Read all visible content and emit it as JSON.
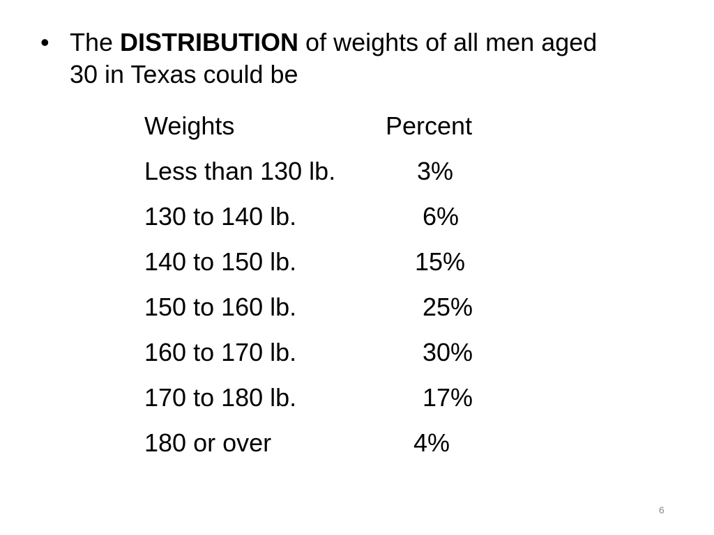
{
  "slide": {
    "bullet": {
      "glyph": "•",
      "prefix": "The ",
      "emphasis": "DISTRIBUTION",
      "suffix": " of weights of all men aged",
      "line2": "30 in Texas could be"
    },
    "table": {
      "headers": {
        "weights": "Weights",
        "percent": "Percent"
      },
      "rows": [
        {
          "weight": "Less than 130 lb.",
          "percent": "3%"
        },
        {
          "weight": "130 to 140 lb.",
          "percent": "6%"
        },
        {
          "weight": "140 to 150 lb.",
          "percent": "15%"
        },
        {
          "weight": "150 to 160 lb.",
          "percent": "25%"
        },
        {
          "weight": "160 to 170 lb.",
          "percent": "30%"
        },
        {
          "weight": "170 to 180 lb.",
          "percent": "17%"
        },
        {
          "weight": "180 or over",
          "percent": "4%"
        }
      ]
    },
    "page_number": "6"
  }
}
